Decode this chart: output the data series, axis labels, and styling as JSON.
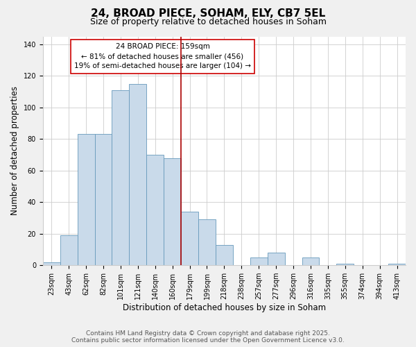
{
  "title": "24, BROAD PIECE, SOHAM, ELY, CB7 5EL",
  "subtitle": "Size of property relative to detached houses in Soham",
  "xlabel": "Distribution of detached houses by size in Soham",
  "ylabel": "Number of detached properties",
  "bar_labels": [
    "23sqm",
    "43sqm",
    "62sqm",
    "82sqm",
    "101sqm",
    "121sqm",
    "140sqm",
    "160sqm",
    "179sqm",
    "199sqm",
    "218sqm",
    "238sqm",
    "257sqm",
    "277sqm",
    "296sqm",
    "316sqm",
    "335sqm",
    "355sqm",
    "374sqm",
    "394sqm",
    "413sqm"
  ],
  "bar_values": [
    2,
    19,
    83,
    83,
    111,
    115,
    70,
    68,
    34,
    29,
    13,
    0,
    5,
    8,
    0,
    5,
    0,
    1,
    0,
    0,
    1
  ],
  "bar_color": "#c9daea",
  "bar_edge_color": "#6699bb",
  "vline_x_index": 7,
  "vline_color": "#aa0000",
  "ylim": [
    0,
    145
  ],
  "annotation_text": "24 BROAD PIECE: 159sqm\n← 81% of detached houses are smaller (456)\n19% of semi-detached houses are larger (104) →",
  "annotation_box_color": "#ffffff",
  "annotation_box_edge": "#cc0000",
  "footer_line1": "Contains HM Land Registry data © Crown copyright and database right 2025.",
  "footer_line2": "Contains public sector information licensed under the Open Government Licence v3.0.",
  "bg_color": "#f0f0f0",
  "plot_bg_color": "#ffffff",
  "title_fontsize": 11,
  "subtitle_fontsize": 9,
  "tick_fontsize": 7,
  "axis_label_fontsize": 8.5,
  "footer_fontsize": 6.5,
  "yticks": [
    0,
    20,
    40,
    60,
    80,
    100,
    120,
    140
  ]
}
